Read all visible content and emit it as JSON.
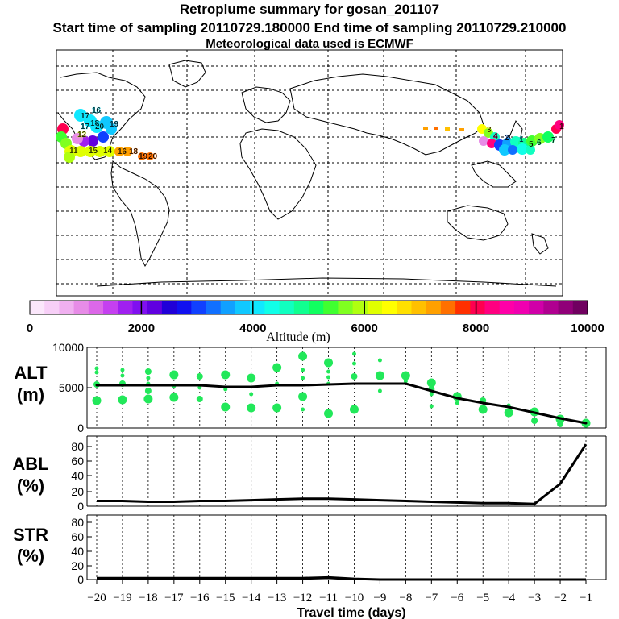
{
  "header": {
    "title": "Retroplume summary for gosan_201107",
    "sampling_line": "Start time of sampling 20110729.180000     End time of sampling 20110729.210000",
    "met_line": "Meteorological data used is ECMWF"
  },
  "colorbar": {
    "tick_labels": [
      "0",
      "2000",
      "4000",
      "6000",
      "8000",
      "10000"
    ],
    "label": "Altitude (m)",
    "colors": [
      "#fbe7fb",
      "#f7cff7",
      "#f0b0f0",
      "#e78ce7",
      "#dc68e8",
      "#c540f0",
      "#a020f0",
      "#8010f0",
      "#6000e0",
      "#2000d8",
      "#1010f0",
      "#1040ff",
      "#1070ff",
      "#10a0ff",
      "#10c8ff",
      "#10e8ff",
      "#10ffe8",
      "#10ffc0",
      "#10ff90",
      "#10ff60",
      "#40ff30",
      "#80ff20",
      "#b0ff10",
      "#e0ff00",
      "#ffff00",
      "#ffe000",
      "#ffc000",
      "#ffa000",
      "#ff7000",
      "#ff3000",
      "#ff0050",
      "#ff0080",
      "#ff00a8",
      "#f000b0",
      "#d000a8",
      "#b00090",
      "#900078",
      "#700060"
    ]
  },
  "map": {
    "labels": [
      {
        "text": "16",
        "color": "#10e8ff"
      },
      {
        "text": "17",
        "color": "#10e8ff"
      },
      {
        "text": "18",
        "color": "#10e8ff"
      },
      {
        "text": "20",
        "color": "#10e8ff"
      },
      {
        "text": "19",
        "color": "#10c8ff"
      },
      {
        "text": "12",
        "color": "#e0ff00"
      },
      {
        "text": "11",
        "color": "#e0ff00"
      },
      {
        "text": "15",
        "color": "#e0ff00"
      },
      {
        "text": "14",
        "color": "#e0ff00"
      },
      {
        "text": "16",
        "color": "#ffa000"
      },
      {
        "text": "18",
        "color": "#ff7000"
      },
      {
        "text": "19",
        "color": "#ff7000"
      },
      {
        "text": "20",
        "color": "#ff7000"
      },
      {
        "text": "3",
        "color": "#ffff00"
      },
      {
        "text": "4",
        "color": "#ff0080"
      },
      {
        "text": "5",
        "color": "#40ff30"
      },
      {
        "text": "6",
        "color": "#10ffc0"
      },
      {
        "text": "7",
        "color": "#10ff90"
      },
      {
        "text": "2",
        "color": "#1070ff"
      },
      {
        "text": "1",
        "color": "#10e8ff"
      },
      {
        "text": "1",
        "color": "#ff0050"
      },
      {
        "text": "17",
        "color": "#10e8ff"
      }
    ]
  },
  "colors": {
    "dot": "#22e85a",
    "line": "#000000",
    "grid": "#000000"
  },
  "chart_data": [
    {
      "type": "line",
      "panel": "ALT",
      "ylabel": [
        "ALT",
        "(m)"
      ],
      "ylim": [
        0,
        10000
      ],
      "yticks": [
        "10000",
        "5000",
        "0"
      ],
      "x": [
        -20,
        -19,
        -18,
        -17,
        -16,
        -15,
        -14,
        -13,
        -12,
        -11,
        -10,
        -9,
        -8,
        -7,
        -6,
        -5,
        -4,
        -3,
        -2,
        -1
      ],
      "values": [
        5300,
        5300,
        5300,
        5300,
        5300,
        5100,
        5100,
        5300,
        5300,
        5400,
        5500,
        5500,
        5500,
        4600,
        3700,
        3100,
        2600,
        1900,
        1200,
        600
      ],
      "scatter": [
        {
          "x": -20,
          "y": 7400,
          "s": "s"
        },
        {
          "x": -20,
          "y": 6900,
          "s": "s"
        },
        {
          "x": -20,
          "y": 5400,
          "s": "m"
        },
        {
          "x": -20,
          "y": 3400,
          "s": "l"
        },
        {
          "x": -19,
          "y": 7200,
          "s": "s"
        },
        {
          "x": -19,
          "y": 6500,
          "s": "s"
        },
        {
          "x": -19,
          "y": 5500,
          "s": "m"
        },
        {
          "x": -19,
          "y": 3500,
          "s": "l"
        },
        {
          "x": -18,
          "y": 7000,
          "s": "m"
        },
        {
          "x": -18,
          "y": 6200,
          "s": "s"
        },
        {
          "x": -18,
          "y": 5500,
          "s": "s"
        },
        {
          "x": -18,
          "y": 4600,
          "s": "m"
        },
        {
          "x": -18,
          "y": 3600,
          "s": "l"
        },
        {
          "x": -17,
          "y": 6600,
          "s": "l"
        },
        {
          "x": -17,
          "y": 5200,
          "s": "s"
        },
        {
          "x": -17,
          "y": 3800,
          "s": "l"
        },
        {
          "x": -16,
          "y": 6400,
          "s": "m"
        },
        {
          "x": -16,
          "y": 5000,
          "s": "s"
        },
        {
          "x": -16,
          "y": 3600,
          "s": "m"
        },
        {
          "x": -15,
          "y": 6600,
          "s": "l"
        },
        {
          "x": -15,
          "y": 4800,
          "s": "s"
        },
        {
          "x": -15,
          "y": 2600,
          "s": "l"
        },
        {
          "x": -14,
          "y": 6200,
          "s": "l"
        },
        {
          "x": -14,
          "y": 4200,
          "s": "s"
        },
        {
          "x": -14,
          "y": 2500,
          "s": "l"
        },
        {
          "x": -13,
          "y": 7500,
          "s": "l"
        },
        {
          "x": -13,
          "y": 5500,
          "s": "s"
        },
        {
          "x": -13,
          "y": 2500,
          "s": "l"
        },
        {
          "x": -12,
          "y": 8900,
          "s": "l"
        },
        {
          "x": -12,
          "y": 7200,
          "s": "s"
        },
        {
          "x": -12,
          "y": 6200,
          "s": "s"
        },
        {
          "x": -12,
          "y": 3900,
          "s": "l"
        },
        {
          "x": -12,
          "y": 2300,
          "s": "s"
        },
        {
          "x": -11,
          "y": 8100,
          "s": "l"
        },
        {
          "x": -11,
          "y": 7000,
          "s": "s"
        },
        {
          "x": -11,
          "y": 6300,
          "s": "s"
        },
        {
          "x": -11,
          "y": 5500,
          "s": "s"
        },
        {
          "x": -11,
          "y": 1800,
          "s": "l"
        },
        {
          "x": -10,
          "y": 9200,
          "s": "s"
        },
        {
          "x": -10,
          "y": 8000,
          "s": "s"
        },
        {
          "x": -10,
          "y": 6400,
          "s": "m"
        },
        {
          "x": -10,
          "y": 2300,
          "s": "l"
        },
        {
          "x": -9,
          "y": 8400,
          "s": "s"
        },
        {
          "x": -9,
          "y": 6500,
          "s": "l"
        },
        {
          "x": -9,
          "y": 4600,
          "s": "s"
        },
        {
          "x": -8,
          "y": 6500,
          "s": "l"
        },
        {
          "x": -8,
          "y": 5800,
          "s": "s"
        },
        {
          "x": -7,
          "y": 5600,
          "s": "l"
        },
        {
          "x": -7,
          "y": 4800,
          "s": "m"
        },
        {
          "x": -7,
          "y": 4200,
          "s": "s"
        },
        {
          "x": -7,
          "y": 2700,
          "s": "s"
        },
        {
          "x": -6,
          "y": 3900,
          "s": "l"
        },
        {
          "x": -6,
          "y": 3100,
          "s": "s"
        },
        {
          "x": -5,
          "y": 3400,
          "s": "m"
        },
        {
          "x": -5,
          "y": 2300,
          "s": "l"
        },
        {
          "x": -4,
          "y": 2800,
          "s": "s"
        },
        {
          "x": -4,
          "y": 1900,
          "s": "l"
        },
        {
          "x": -3,
          "y": 2000,
          "s": "l"
        },
        {
          "x": -3,
          "y": 900,
          "s": "m"
        },
        {
          "x": -2,
          "y": 1100,
          "s": "l"
        },
        {
          "x": -2,
          "y": 500,
          "s": "m"
        },
        {
          "x": -1,
          "y": 600,
          "s": "l"
        }
      ]
    },
    {
      "type": "line",
      "panel": "ABL",
      "ylabel": [
        "ABL",
        "(%)"
      ],
      "ylim": [
        0,
        100
      ],
      "yticks": [
        "80",
        "60",
        "40",
        "20",
        "0"
      ],
      "x": [
        -20,
        -19,
        -18,
        -17,
        -16,
        -15,
        -14,
        -13,
        -12,
        -11,
        -10,
        -9,
        -8,
        -7,
        -6,
        -5,
        -4,
        -3,
        -2,
        -1
      ],
      "values": [
        7,
        7,
        6,
        6,
        7,
        7,
        8,
        9,
        10,
        10,
        9,
        8,
        7,
        6,
        5,
        4,
        4,
        3,
        30,
        83
      ]
    },
    {
      "type": "line",
      "panel": "STR",
      "ylabel": [
        "STR",
        "(%)"
      ],
      "ylim": [
        0,
        100
      ],
      "yticks": [
        "80",
        "60",
        "40",
        "20",
        "0"
      ],
      "x": [
        -20,
        -19,
        -18,
        -17,
        -16,
        -15,
        -14,
        -13,
        -12,
        -11,
        -10,
        -9,
        -8,
        -7,
        -6,
        -5,
        -4,
        -3,
        -2,
        -1
      ],
      "values": [
        2,
        2,
        2,
        2,
        2,
        2,
        2,
        2,
        2,
        3,
        1,
        0,
        0,
        0,
        0,
        0,
        0,
        0,
        0,
        0
      ],
      "xlabel": "Travel time (days)",
      "xticks": [
        "−20",
        "−19",
        "−18",
        "−17",
        "−16",
        "−15",
        "−14",
        "−13",
        "−12",
        "−11",
        "−10",
        "−9",
        "−8",
        "−7",
        "−6",
        "−5",
        "−4",
        "−3",
        "−2",
        "−1"
      ]
    }
  ]
}
